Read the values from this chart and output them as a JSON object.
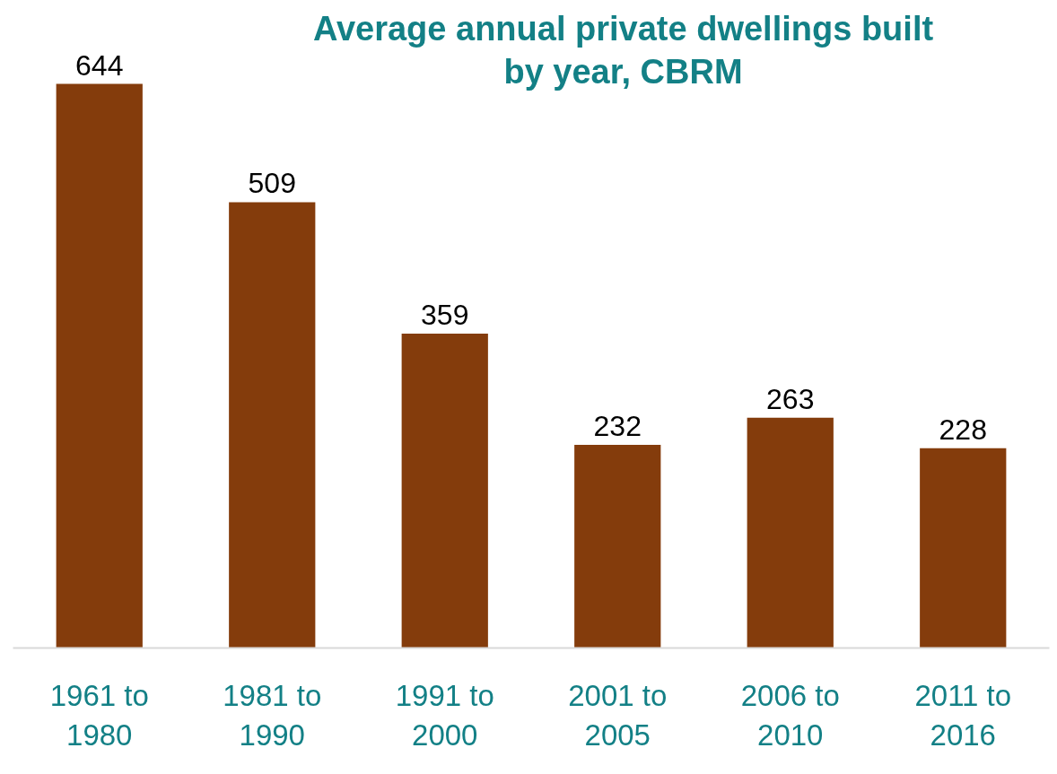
{
  "chart_data": {
    "type": "bar",
    "title": "Average annual private dwellings built by year, CBRM",
    "categories": [
      "1961 to 1980",
      "1981 to 1990",
      "1991 to 2000",
      "2001 to 2005",
      "2006 to 2010",
      "2011 to 2016"
    ],
    "values": [
      644,
      509,
      359,
      232,
      263,
      228
    ],
    "color": "#843c0c",
    "data_labels": true
  }
}
